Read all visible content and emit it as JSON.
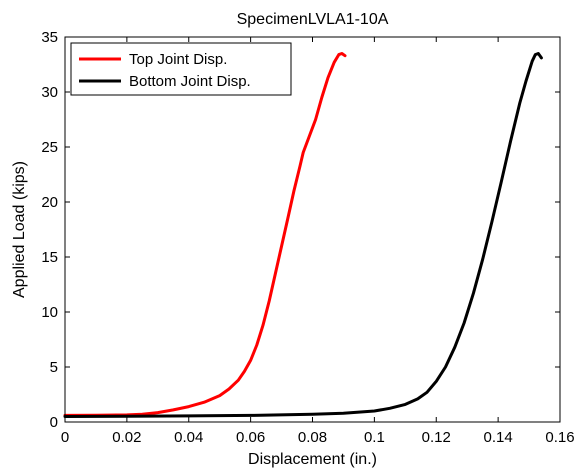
{
  "chart_data": {
    "type": "line",
    "title": "SpecimenLVLA1-10A",
    "xlabel": "Displacement (in.)",
    "ylabel": "Applied Load (kips)",
    "xlim": [
      0,
      0.16
    ],
    "ylim": [
      0,
      35
    ],
    "xticks": [
      0,
      0.02,
      0.04,
      0.06,
      0.08,
      0.1,
      0.12,
      0.14,
      0.16
    ],
    "xtick_labels": [
      "0",
      "0.02",
      "0.04",
      "0.06",
      "0.08",
      "0.1",
      "0.12",
      "0.14",
      "0.16"
    ],
    "yticks": [
      0,
      5,
      10,
      15,
      20,
      25,
      30,
      35
    ],
    "ytick_labels": [
      "0",
      "5",
      "10",
      "15",
      "20",
      "25",
      "30",
      "35"
    ],
    "grid": false,
    "legend_position": "top-left",
    "series": [
      {
        "name": "Top Joint Disp.",
        "color": "#ff0000",
        "x": [
          0,
          0.01,
          0.02,
          0.025,
          0.03,
          0.035,
          0.04,
          0.045,
          0.05,
          0.053,
          0.056,
          0.058,
          0.06,
          0.062,
          0.064,
          0.066,
          0.068,
          0.07,
          0.072,
          0.074,
          0.076,
          0.077,
          0.079,
          0.081,
          0.083,
          0.085,
          0.087,
          0.0885,
          0.0895,
          0.0905
        ],
        "y": [
          0.6,
          0.62,
          0.65,
          0.7,
          0.85,
          1.1,
          1.4,
          1.8,
          2.4,
          3.0,
          3.8,
          4.6,
          5.6,
          7.0,
          8.8,
          11.0,
          13.5,
          16.0,
          18.5,
          21.0,
          23.3,
          24.5,
          26.0,
          27.5,
          29.5,
          31.3,
          32.7,
          33.4,
          33.5,
          33.3
        ]
      },
      {
        "name": "Bottom Joint Disp.",
        "color": "#000000",
        "x": [
          0,
          0.02,
          0.04,
          0.06,
          0.08,
          0.09,
          0.1,
          0.105,
          0.11,
          0.114,
          0.117,
          0.12,
          0.123,
          0.126,
          0.129,
          0.132,
          0.135,
          0.138,
          0.141,
          0.144,
          0.147,
          0.149,
          0.151,
          0.152,
          0.153,
          0.1535,
          0.154
        ],
        "y": [
          0.5,
          0.52,
          0.55,
          0.6,
          0.7,
          0.8,
          1.0,
          1.25,
          1.6,
          2.1,
          2.7,
          3.7,
          5.0,
          6.8,
          9.0,
          11.7,
          14.8,
          18.2,
          21.8,
          25.5,
          29.0,
          31.0,
          32.8,
          33.4,
          33.5,
          33.3,
          33.1
        ]
      }
    ]
  }
}
